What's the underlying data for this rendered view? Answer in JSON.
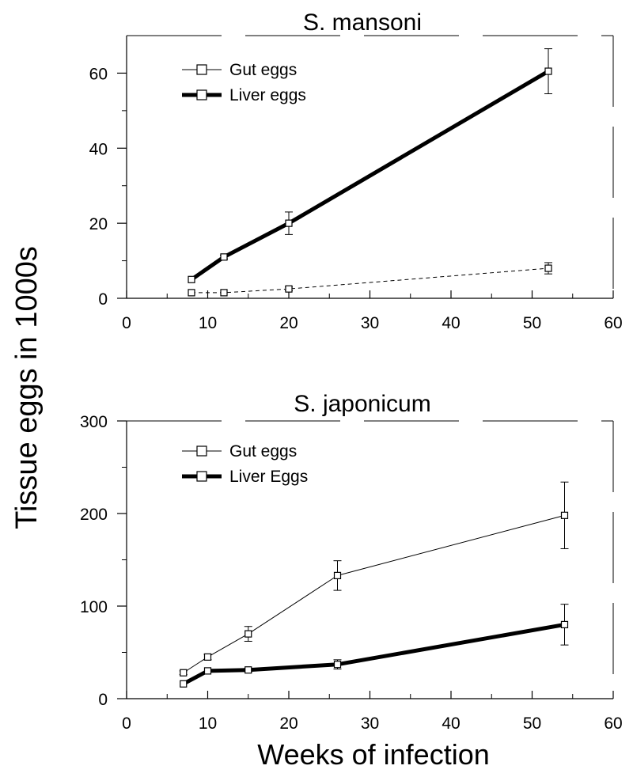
{
  "figure": {
    "ylabel": "Tissue eggs in 1000s",
    "xlabel": "Weeks of infection"
  },
  "colors": {
    "ink": "#000000",
    "background": "#ffffff"
  },
  "chart_data": [
    {
      "type": "line",
      "title": "S. mansoni",
      "xlim": [
        0,
        60
      ],
      "ylim": [
        0,
        70
      ],
      "xticks": [
        0,
        10,
        20,
        30,
        40,
        50,
        60
      ],
      "yticks": [
        0,
        20,
        40,
        60
      ],
      "legend_placement": "top-left",
      "series": [
        {
          "name": "Gut eggs",
          "style": "thin",
          "marker": "open-square",
          "x": [
            8,
            12,
            20,
            52
          ],
          "y": [
            1.5,
            1.5,
            2.5,
            8
          ],
          "err": [
            0,
            0,
            0.5,
            1.5
          ]
        },
        {
          "name": "Liver eggs",
          "style": "thick",
          "marker": "open-square",
          "x": [
            8,
            12,
            20,
            52
          ],
          "y": [
            5,
            11,
            20,
            60.5
          ],
          "err": [
            0,
            0.5,
            3,
            6
          ]
        }
      ]
    },
    {
      "type": "line",
      "title": "S. japonicum",
      "xlim": [
        0,
        60
      ],
      "ylim": [
        0,
        300
      ],
      "xticks": [
        0,
        10,
        20,
        30,
        40,
        50,
        60
      ],
      "yticks": [
        0,
        100,
        200,
        300
      ],
      "legend_placement": "top-left",
      "series": [
        {
          "name": "Gut eggs",
          "style": "thin",
          "marker": "open-square",
          "x": [
            7,
            10,
            15,
            26,
            54
          ],
          "y": [
            28,
            45,
            70,
            133,
            198
          ],
          "err": [
            2,
            3,
            8,
            16,
            36
          ]
        },
        {
          "name": "Liver Eggs",
          "style": "thick",
          "marker": "open-square",
          "x": [
            7,
            10,
            15,
            26,
            54
          ],
          "y": [
            16,
            30,
            31,
            37,
            80
          ],
          "err": [
            0,
            0,
            2,
            5,
            22
          ]
        }
      ]
    }
  ]
}
